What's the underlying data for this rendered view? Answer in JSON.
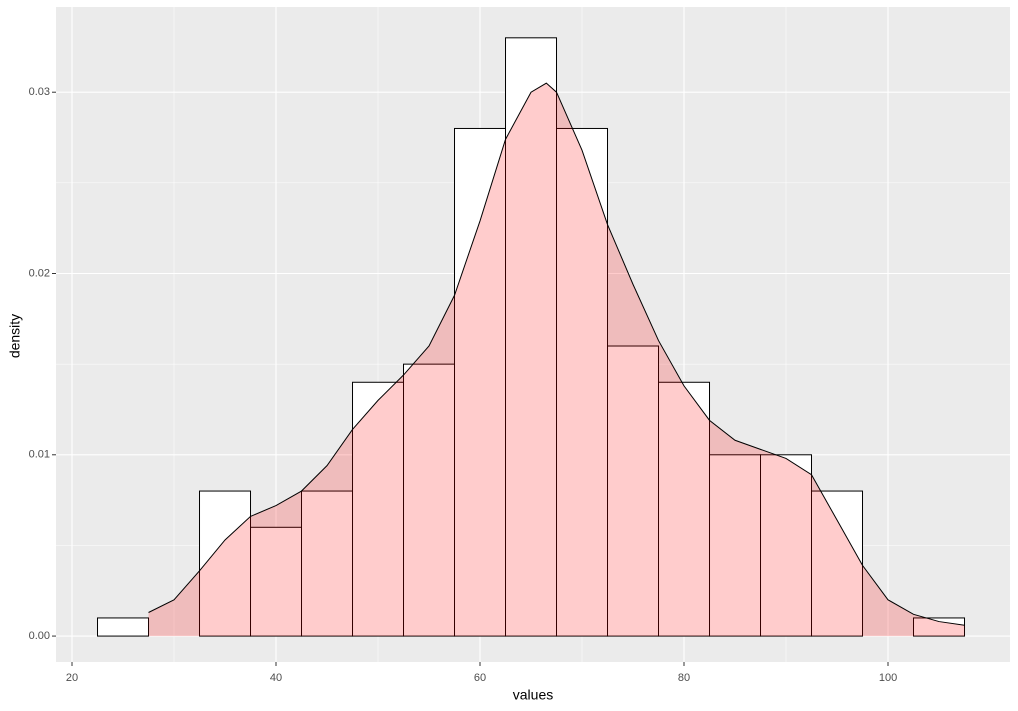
{
  "chart_data": {
    "type": "histogram",
    "x_label": "values",
    "y_label": "density",
    "bins": [
      22.5,
      27.5,
      32.5,
      37.5,
      42.5,
      47.5,
      52.5,
      57.5,
      62.5,
      67.5,
      72.5,
      77.5,
      82.5,
      87.5,
      92.5,
      97.5,
      102.5,
      107.5
    ],
    "values": [
      0.001,
      0,
      0.008,
      0.006,
      0.008,
      0.014,
      0.015,
      0.028,
      0.033,
      0.028,
      0.016,
      0.014,
      0.01,
      0.01,
      0.008,
      0,
      0.001
    ],
    "color": "#ffffff",
    "density": {
      "color": "#ff0000",
      "x": [
        27.5,
        30,
        32.5,
        35,
        37.5,
        40,
        42.5,
        45,
        47.5,
        50,
        52.5,
        55,
        57.5,
        60,
        62.5,
        65,
        66.5,
        67.5,
        70,
        72.5,
        75,
        77.5,
        80,
        82.5,
        85,
        87.5,
        90,
        92.5,
        95,
        97.5,
        100,
        102.5,
        105,
        107.5
      ],
      "y": [
        0.0013,
        0.002,
        0.0036,
        0.0053,
        0.0066,
        0.0072,
        0.008,
        0.0094,
        0.0114,
        0.013,
        0.0144,
        0.016,
        0.0188,
        0.0229,
        0.0274,
        0.03,
        0.0305,
        0.03,
        0.0268,
        0.0227,
        0.0194,
        0.0163,
        0.0138,
        0.0119,
        0.0108,
        0.0103,
        0.0098,
        0.0089,
        0.0064,
        0.0039,
        0.002,
        0.0012,
        0.0008,
        0.0006
      ]
    },
    "xlim": [
      18.43,
      111.96
    ],
    "ylim": [
      -0.00143,
      0.0347
    ],
    "xticks": [
      20,
      40,
      60,
      80,
      100
    ],
    "yticks": [
      {
        "value": 0,
        "label": "0.00"
      },
      0.01,
      0.02,
      0.03
    ],
    "grid": true
  }
}
